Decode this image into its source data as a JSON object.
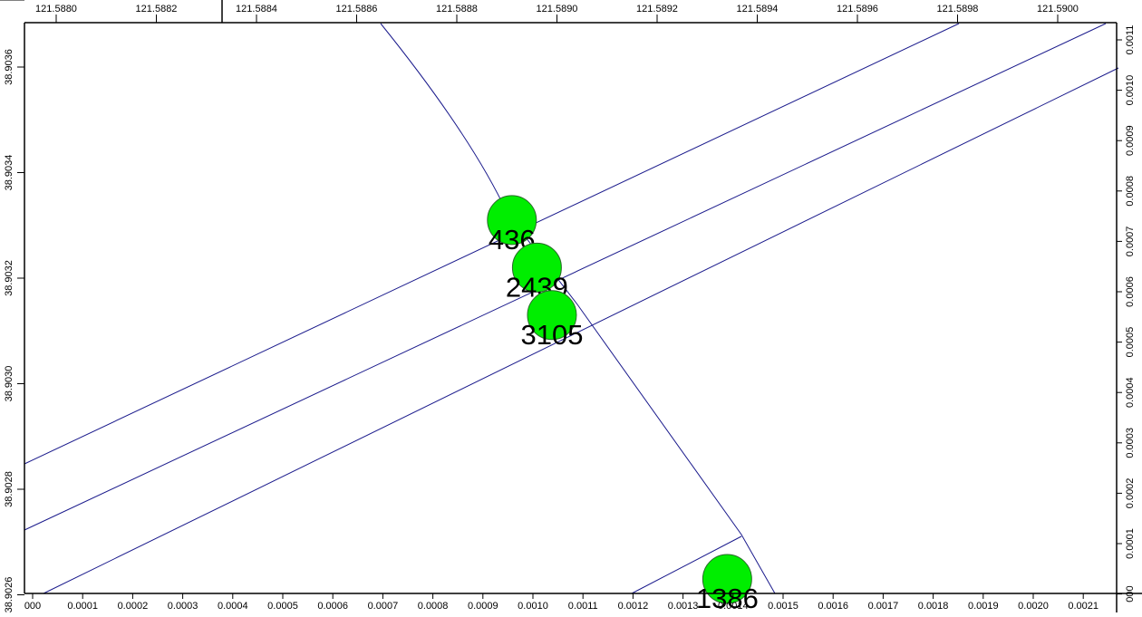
{
  "map": {
    "colors": {
      "background": "#ffffff",
      "road": "#1a1a8c",
      "node_fill": "#00ee00",
      "node_stroke": "#2a6a2a",
      "ruler": "#000000"
    },
    "top_ruler": {
      "labels": [
        "121.5880",
        "121.5882",
        "121.5884",
        "121.5886",
        "121.5888",
        "121.5890",
        "121.5892",
        "121.5894",
        "121.5896",
        "121.5898",
        "121.5900"
      ]
    },
    "left_ruler": {
      "labels": [
        "38.9036",
        "38.9034",
        "38.9032",
        "38.9030",
        "38.9028",
        "38.9026"
      ]
    },
    "bottom_ruler": {
      "labels": [
        "000",
        "0.0001",
        "0.0002",
        "0.0003",
        "0.0004",
        "0.0005",
        "0.0006",
        "0.0007",
        "0.0008",
        "0.0009",
        "0.0010",
        "0.0011",
        "0.0012",
        "0.0013",
        "0.0014",
        "0.0015",
        "0.0016",
        "0.0017",
        "0.0018",
        "0.0019",
        "0.0020",
        "0.0021"
      ]
    },
    "right_ruler": {
      "labels": [
        "0.0011",
        "0.0010",
        "0.0009",
        "0.0008",
        "0.0007",
        "0.0006",
        "0.0005",
        "0.0004",
        "0.0003",
        "0.0002",
        "0.0001",
        "000"
      ]
    },
    "nodes": [
      {
        "id": "436",
        "label": "436",
        "lon": 121.58891,
        "lat": 38.90331
      },
      {
        "id": "2439",
        "label": "2439",
        "lon": 121.58896,
        "lat": 38.90322
      },
      {
        "id": "3105",
        "label": "3105",
        "lon": 121.58899,
        "lat": 38.90313
      },
      {
        "id": "1386",
        "label": "1386",
        "lon": 121.58934,
        "lat": 38.90263
      }
    ]
  }
}
